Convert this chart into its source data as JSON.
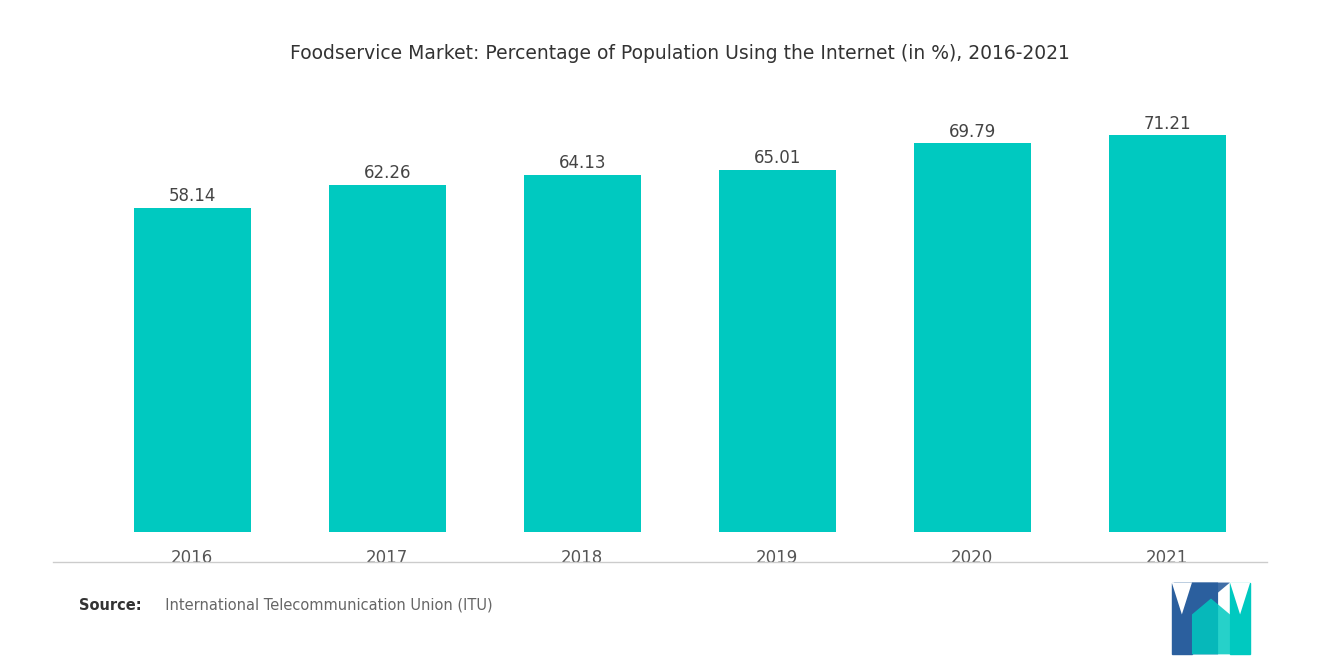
{
  "title": "Foodservice Market: Percentage of Population Using the Internet (in %), 2016-2021",
  "categories": [
    "2016",
    "2017",
    "2018",
    "2019",
    "2020",
    "2021"
  ],
  "values": [
    58.14,
    62.26,
    64.13,
    65.01,
    69.79,
    71.21
  ],
  "bar_color": "#00C9C0",
  "background_color": "#ffffff",
  "title_fontsize": 13.5,
  "label_fontsize": 12,
  "value_fontsize": 12,
  "source_bold": "Source:",
  "source_rest": "  International Telecommunication Union (ITU)",
  "ylim": [
    0,
    80
  ],
  "bar_width": 0.6,
  "blue_color": "#2B5F9E",
  "teal_color": "#00C9C0"
}
